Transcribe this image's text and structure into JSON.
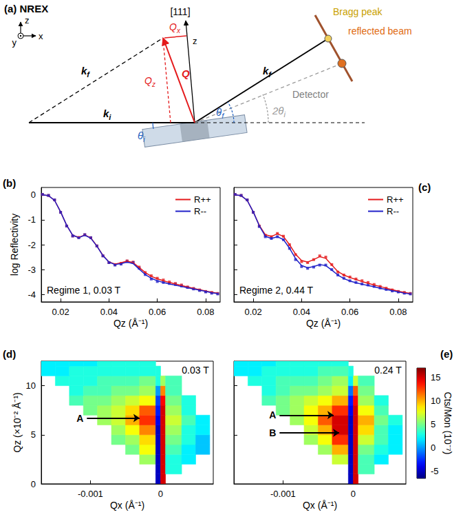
{
  "diagram": {
    "label": "(a)",
    "title": "NREX",
    "frame_axes": {
      "z": "z",
      "y": "y",
      "x": "x"
    },
    "sample_axis": "[111]",
    "sample_axis_z": "z",
    "Q": "Q",
    "Qx": {
      "text": "Q",
      "sub": "x"
    },
    "Qz": {
      "text": "Q",
      "sub": "z"
    },
    "ki": {
      "text": "k",
      "sub": "i"
    },
    "kf": {
      "text": "k",
      "sub": "f"
    },
    "theta_i": {
      "text": "θ",
      "sub": "i"
    },
    "theta_f": {
      "text": "θ",
      "sub": "f"
    },
    "two_theta_i": {
      "text": "2θ",
      "sub": "i"
    },
    "bragg_peak": "Bragg peak",
    "reflected_beam": "reflected beam",
    "detector": "Detector"
  },
  "chart_data": [
    {
      "label": "(b)",
      "type": "line",
      "xlabel": "Qz (Å⁻¹)",
      "ylabel": "log Reflectivity",
      "annotation": "Regime 1, 0.03 T",
      "x": [
        0.0125,
        0.015,
        0.0175,
        0.02,
        0.0225,
        0.025,
        0.0275,
        0.03,
        0.0325,
        0.035,
        0.0375,
        0.04,
        0.0425,
        0.045,
        0.0475,
        0.05,
        0.0525,
        0.055,
        0.0575,
        0.06,
        0.0625,
        0.065,
        0.0675,
        0.07,
        0.0725,
        0.075,
        0.0775,
        0.08,
        0.0825,
        0.085
      ],
      "series": [
        {
          "name": "R++",
          "color": "#e41a1c",
          "marker": "square",
          "line_style": "solid",
          "values": [
            0.02,
            -0.02,
            -0.2,
            -0.7,
            -1.25,
            -1.65,
            -1.71,
            -1.6,
            -1.72,
            -2.05,
            -2.45,
            -2.72,
            -2.8,
            -2.75,
            -2.65,
            -2.7,
            -2.9,
            -3.12,
            -3.25,
            -3.35,
            -3.42,
            -3.5,
            -3.56,
            -3.62,
            -3.7,
            -3.76,
            -3.82,
            -3.88,
            -3.92,
            -3.96
          ],
          "fit": [
            0.01,
            -0.03,
            -0.22,
            -0.68,
            -1.22,
            -1.62,
            -1.71,
            -1.61,
            -1.73,
            -2.05,
            -2.43,
            -2.69,
            -2.78,
            -2.73,
            -2.66,
            -2.72,
            -2.92,
            -3.12,
            -3.27,
            -3.37,
            -3.45,
            -3.52,
            -3.58,
            -3.64,
            -3.7,
            -3.76,
            -3.81,
            -3.86,
            -3.91,
            -3.95
          ]
        },
        {
          "name": "R--",
          "color": "#2020c8",
          "marker": "square",
          "line_style": "solid",
          "values": [
            0.02,
            -0.02,
            -0.2,
            -0.7,
            -1.25,
            -1.65,
            -1.72,
            -1.6,
            -1.72,
            -2.05,
            -2.45,
            -2.72,
            -2.82,
            -2.78,
            -2.68,
            -2.72,
            -2.95,
            -3.2,
            -3.38,
            -3.48,
            -3.52,
            -3.56,
            -3.6,
            -3.66,
            -3.72,
            -3.78,
            -3.84,
            -3.9,
            -3.95,
            -3.98
          ],
          "fit": [
            0.01,
            -0.03,
            -0.22,
            -0.68,
            -1.22,
            -1.62,
            -1.72,
            -1.62,
            -1.74,
            -2.06,
            -2.44,
            -2.7,
            -2.8,
            -2.76,
            -2.7,
            -2.76,
            -2.98,
            -3.2,
            -3.35,
            -3.45,
            -3.52,
            -3.58,
            -3.63,
            -3.68,
            -3.73,
            -3.78,
            -3.83,
            -3.88,
            -3.93,
            -3.97
          ]
        }
      ],
      "xlim": [
        0.012,
        0.086
      ],
      "xticks": [
        0.02,
        0.04,
        0.06,
        0.08
      ],
      "ylim": [
        -4.3,
        0.3
      ],
      "yticks": [
        0,
        -1,
        -2,
        -3,
        -4
      ],
      "legend": "upper right",
      "grid": false
    },
    {
      "label": "(c)",
      "type": "line",
      "xlabel": "Qz (Å⁻¹)",
      "annotation": "Regime 2, 0.44 T",
      "tick_labels": "x",
      "x": [
        0.0125,
        0.015,
        0.0175,
        0.02,
        0.0225,
        0.025,
        0.0275,
        0.03,
        0.0325,
        0.035,
        0.0375,
        0.04,
        0.0425,
        0.045,
        0.0475,
        0.05,
        0.0525,
        0.055,
        0.0575,
        0.06,
        0.0625,
        0.065,
        0.0675,
        0.07,
        0.0725,
        0.075,
        0.0775,
        0.08,
        0.0825,
        0.085
      ],
      "series": [
        {
          "name": "R++",
          "color": "#e41a1c",
          "marker": "square",
          "line_style": "solid",
          "values": [
            0.02,
            -0.02,
            -0.2,
            -0.7,
            -1.25,
            -1.62,
            -1.68,
            -1.55,
            -1.66,
            -2.0,
            -2.4,
            -2.68,
            -2.72,
            -2.6,
            -2.45,
            -2.5,
            -2.8,
            -3.1,
            -3.22,
            -3.3,
            -3.38,
            -3.45,
            -3.52,
            -3.6,
            -3.68,
            -3.75,
            -3.82,
            -3.88,
            -3.92,
            -3.96
          ],
          "fit": [
            0.01,
            -0.03,
            -0.22,
            -0.68,
            -1.22,
            -1.6,
            -1.67,
            -1.56,
            -1.67,
            -2.0,
            -2.38,
            -2.64,
            -2.7,
            -2.6,
            -2.48,
            -2.55,
            -2.82,
            -3.08,
            -3.22,
            -3.32,
            -3.4,
            -3.48,
            -3.55,
            -3.62,
            -3.68,
            -3.75,
            -3.81,
            -3.87,
            -3.92,
            -3.96
          ]
        },
        {
          "name": "R--",
          "color": "#2020c8",
          "marker": "square",
          "line_style": "solid",
          "values": [
            0.02,
            -0.02,
            -0.2,
            -0.7,
            -1.27,
            -1.68,
            -1.75,
            -1.68,
            -1.8,
            -2.15,
            -2.6,
            -2.88,
            -2.95,
            -2.9,
            -2.82,
            -2.82,
            -3.0,
            -3.22,
            -3.35,
            -3.45,
            -3.52,
            -3.58,
            -3.62,
            -3.68,
            -3.74,
            -3.8,
            -3.86,
            -3.9,
            -3.95,
            -3.98
          ],
          "fit": [
            0.01,
            -0.03,
            -0.22,
            -0.68,
            -1.24,
            -1.66,
            -1.75,
            -1.68,
            -1.8,
            -2.14,
            -2.56,
            -2.84,
            -2.93,
            -2.88,
            -2.8,
            -2.84,
            -3.02,
            -3.22,
            -3.36,
            -3.46,
            -3.53,
            -3.59,
            -3.64,
            -3.69,
            -3.75,
            -3.8,
            -3.85,
            -3.9,
            -3.95,
            -3.98
          ]
        }
      ],
      "xlim": [
        0.012,
        0.086
      ],
      "xticks": [
        0.02,
        0.04,
        0.06,
        0.08
      ],
      "ylim": [
        -4.3,
        0.3
      ],
      "yticks": [
        0,
        -1,
        -2,
        -3,
        -4
      ],
      "legend": "upper right",
      "grid": false
    },
    {
      "label": "(d)",
      "type": "heatmap",
      "title": "0.03 T",
      "xlabel": "Qx (Å⁻¹)",
      "ylabel": "Qz (×10⁻² Å⁻¹)",
      "x_edges": [
        -0.0017,
        -0.0015,
        -0.0013,
        -0.0011,
        -0.0009,
        -0.0007,
        -0.0005,
        -0.0003,
        -7e-05,
        0,
        7e-05,
        0.0003,
        0.0005,
        0.0007
      ],
      "y_edges": [
        0,
        1,
        2,
        3,
        4,
        5,
        6,
        7,
        8,
        9,
        10,
        11,
        12,
        12.5
      ],
      "cells": [
        [
          null,
          null,
          null,
          null,
          null,
          null,
          null,
          null,
          -5,
          15,
          null,
          null,
          null
        ],
        [
          null,
          null,
          null,
          null,
          null,
          null,
          null,
          null,
          -5,
          15,
          3,
          null,
          null
        ],
        [
          null,
          null,
          null,
          null,
          null,
          null,
          null,
          6,
          -5,
          15,
          3,
          2,
          null
        ],
        [
          null,
          null,
          null,
          null,
          null,
          null,
          5,
          8,
          -5,
          15,
          4,
          2,
          1
        ],
        [
          null,
          null,
          null,
          null,
          null,
          5,
          6,
          9,
          -5,
          15,
          5,
          3,
          1
        ],
        [
          null,
          null,
          null,
          null,
          null,
          6,
          8,
          11,
          -5,
          15,
          6,
          3,
          2
        ],
        [
          null,
          null,
          null,
          null,
          6,
          7,
          10,
          13,
          -4,
          15,
          7,
          4,
          2
        ],
        [
          null,
          null,
          null,
          5,
          6,
          7,
          9,
          12,
          -3,
          15,
          6,
          3,
          null
        ],
        [
          null,
          null,
          4,
          5,
          5,
          6,
          7,
          8,
          -2,
          14,
          5,
          3,
          null
        ],
        [
          null,
          null,
          3,
          4,
          4,
          5,
          5,
          6,
          0,
          11,
          4,
          null,
          null
        ],
        [
          null,
          3,
          3,
          3,
          4,
          4,
          4,
          5,
          3,
          6,
          4,
          null,
          null
        ],
        [
          2,
          2,
          3,
          3,
          3,
          3,
          3,
          3,
          3,
          null,
          null,
          null,
          null
        ],
        [
          2,
          2,
          2,
          2,
          3,
          3,
          3,
          3,
          null,
          null,
          null,
          null,
          null
        ]
      ],
      "annotations": [
        {
          "text": "A",
          "x": -0.00105,
          "y": 6.7,
          "to_x": -0.0003,
          "to_y": 6.7
        }
      ],
      "xlim": [
        -0.0017,
        0.00075
      ],
      "xticks": [
        -0.001,
        0
      ],
      "ylim": [
        0,
        12.5
      ],
      "yticks": [
        0,
        5,
        10
      ],
      "grid": false
    },
    {
      "label": "(e)",
      "type": "heatmap",
      "title": "0.24 T",
      "xlabel": "Qx (Å⁻¹)",
      "tick_labels": "x",
      "x_edges": [
        -0.0017,
        -0.0015,
        -0.0013,
        -0.0011,
        -0.0009,
        -0.0007,
        -0.0005,
        -0.0003,
        -7e-05,
        0,
        7e-05,
        0.0003,
        0.0005,
        0.0007
      ],
      "y_edges": [
        0,
        1,
        2,
        3,
        4,
        5,
        6,
        7,
        8,
        9,
        10,
        11,
        12,
        12.5
      ],
      "cells": [
        [
          null,
          null,
          null,
          null,
          null,
          null,
          null,
          null,
          -5,
          15,
          null,
          null,
          null
        ],
        [
          null,
          null,
          null,
          null,
          null,
          null,
          null,
          null,
          -5,
          15,
          4,
          null,
          null
        ],
        [
          null,
          null,
          null,
          null,
          null,
          null,
          null,
          7,
          -5,
          15,
          4,
          2,
          null
        ],
        [
          null,
          null,
          null,
          null,
          null,
          null,
          6,
          10,
          -5,
          15,
          5,
          3,
          2
        ],
        [
          null,
          null,
          null,
          null,
          null,
          6,
          8,
          13,
          -5,
          15,
          7,
          4,
          2
        ],
        [
          null,
          null,
          null,
          null,
          null,
          7,
          10,
          15,
          -5,
          15,
          9,
          4,
          2
        ],
        [
          null,
          null,
          null,
          null,
          6,
          8,
          12,
          15,
          -5,
          15,
          10,
          5,
          3
        ],
        [
          null,
          null,
          null,
          5,
          6,
          8,
          10,
          13,
          -4,
          15,
          8,
          4,
          null
        ],
        [
          null,
          null,
          4,
          5,
          6,
          7,
          8,
          10,
          -3,
          14,
          6,
          3,
          null
        ],
        [
          null,
          null,
          3,
          4,
          5,
          5,
          6,
          7,
          -1,
          12,
          5,
          null,
          null
        ],
        [
          null,
          3,
          3,
          4,
          4,
          4,
          5,
          6,
          2,
          7,
          4,
          null,
          null
        ],
        [
          2,
          2,
          3,
          3,
          3,
          3,
          4,
          4,
          3,
          null,
          null,
          null,
          null
        ],
        [
          2,
          2,
          2,
          3,
          3,
          3,
          3,
          3,
          null,
          null,
          null,
          null,
          null
        ]
      ],
      "annotations": [
        {
          "text": "A",
          "x": -0.00105,
          "y": 7.0,
          "to_x": -0.00028,
          "to_y": 7.0
        },
        {
          "text": "B",
          "x": -0.00105,
          "y": 5.2,
          "to_x": -0.0002,
          "to_y": 5.2
        }
      ],
      "xlim": [
        -0.0017,
        0.00075
      ],
      "xticks": [
        -0.001,
        0
      ],
      "ylim": [
        0,
        12.5
      ],
      "yticks": [
        0,
        5,
        10
      ],
      "grid": false,
      "colorbar": {
        "label": "Cts/Mon (10⁻⁷)",
        "lim": [
          -6.5,
          17
        ],
        "ticks": [
          15,
          10,
          5,
          0,
          -5
        ]
      }
    }
  ]
}
